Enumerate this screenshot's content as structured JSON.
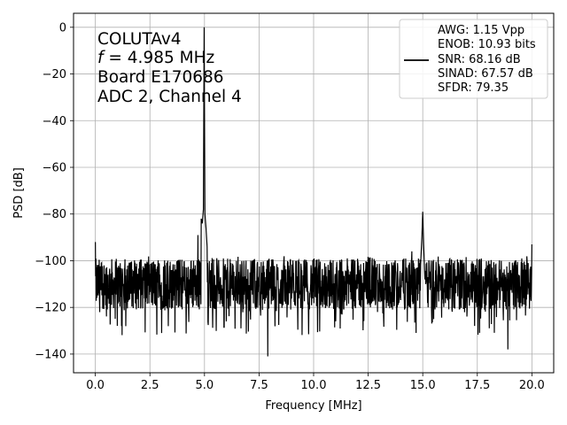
{
  "chart_data": {
    "type": "line",
    "xlabel": "Frequency [MHz]",
    "ylabel": "PSD [dB]",
    "xlim": [
      -1.0,
      21.0
    ],
    "ylim": [
      -148,
      6
    ],
    "xticks": [
      0.0,
      2.5,
      5.0,
      7.5,
      10.0,
      12.5,
      15.0,
      17.5,
      20.0
    ],
    "xtick_labels": [
      "0.0",
      "2.5",
      "5.0",
      "7.5",
      "10.0",
      "12.5",
      "15.0",
      "17.5",
      "20.0"
    ],
    "yticks": [
      0,
      -20,
      -40,
      -60,
      -80,
      -100,
      -120,
      -140
    ],
    "ytick_labels": [
      "0",
      "−20",
      "−40",
      "−60",
      "−80",
      "−100",
      "−120",
      "−140"
    ],
    "grid": true,
    "legend_position": "top-right",
    "annotation_lines": [
      "COLUTAv4",
      "= 4.985 MHz",
      "Board E170686",
      "ADC 2, Channel 4"
    ],
    "annotation_italic_prefix": "f",
    "legend_lines": [
      "AWG: 1.15 Vpp",
      "ENOB: 10.93 bits",
      "SNR: 68.16 dB",
      "SINAD: 67.57 dB",
      "SFDR: 79.35"
    ],
    "line_color": "#000000",
    "noise_floor_db": -110,
    "series": [
      {
        "x": [
          0.0,
          0.1,
          0.2,
          0.4,
          0.8,
          1.2,
          1.6,
          2.0,
          2.5,
          3.0,
          3.5,
          4.0,
          4.5,
          4.7,
          4.85,
          4.9,
          4.95,
          4.985,
          5.02,
          5.07,
          5.12,
          5.3,
          5.6,
          6.0,
          6.3,
          6.5,
          7.0,
          7.5,
          7.9,
          8.5,
          9.0,
          10.0,
          11.0,
          12.0,
          13.0,
          14.0,
          14.5,
          14.9,
          14.96,
          15.0,
          15.04,
          15.1,
          15.5,
          16.0,
          17.0,
          17.4,
          18.0,
          18.9,
          19.5,
          20.0
        ],
        "values": [
          -92,
          -104,
          -122,
          -102,
          -108,
          -128,
          -101,
          -112,
          -109,
          -121,
          -104,
          -113,
          -100,
          -89,
          -82,
          -84,
          -78,
          0,
          -80,
          -86,
          -94,
          -104,
          -110,
          -126,
          -108,
          -118,
          -109,
          -111,
          -141,
          -108,
          -113,
          -107,
          -110,
          -112,
          -108,
          -111,
          -96,
          -102,
          -90,
          -79,
          -93,
          -108,
          -125,
          -108,
          -113,
          -106,
          -111,
          -138,
          -108,
          -93
        ]
      }
    ]
  }
}
